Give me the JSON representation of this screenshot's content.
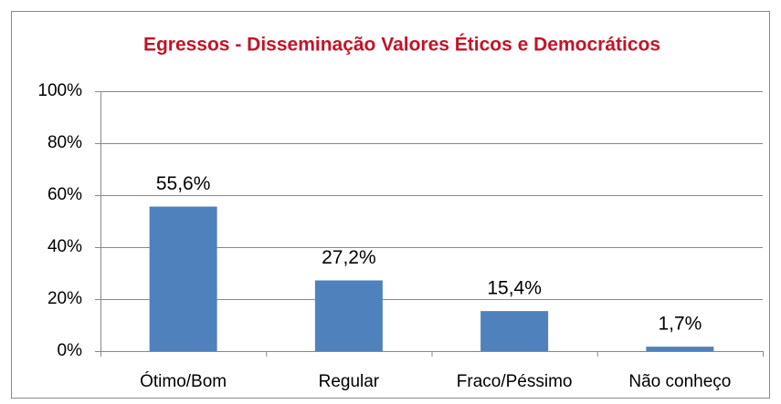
{
  "chart_data": {
    "type": "bar",
    "title": "Egressos - Disseminação Valores Éticos e Democráticos",
    "categories": [
      "Ótimo/Bom",
      "Regular",
      "Fraco/Péssimo",
      "Não conheço"
    ],
    "values": [
      55.6,
      27.2,
      15.4,
      1.7
    ],
    "value_labels": [
      "55,6%",
      "27,2%",
      "15,4%",
      "1,7%"
    ],
    "color": "#4f81bd",
    "ylim": [
      0,
      100
    ],
    "yticks": [
      {
        "value": 0,
        "label": "0%"
      },
      {
        "value": 20,
        "label": "20%"
      },
      {
        "value": 40,
        "label": "40%"
      },
      {
        "value": 60,
        "label": "60%"
      },
      {
        "value": 80,
        "label": "80%"
      },
      {
        "value": 100,
        "label": "100%"
      }
    ],
    "grid": true
  }
}
